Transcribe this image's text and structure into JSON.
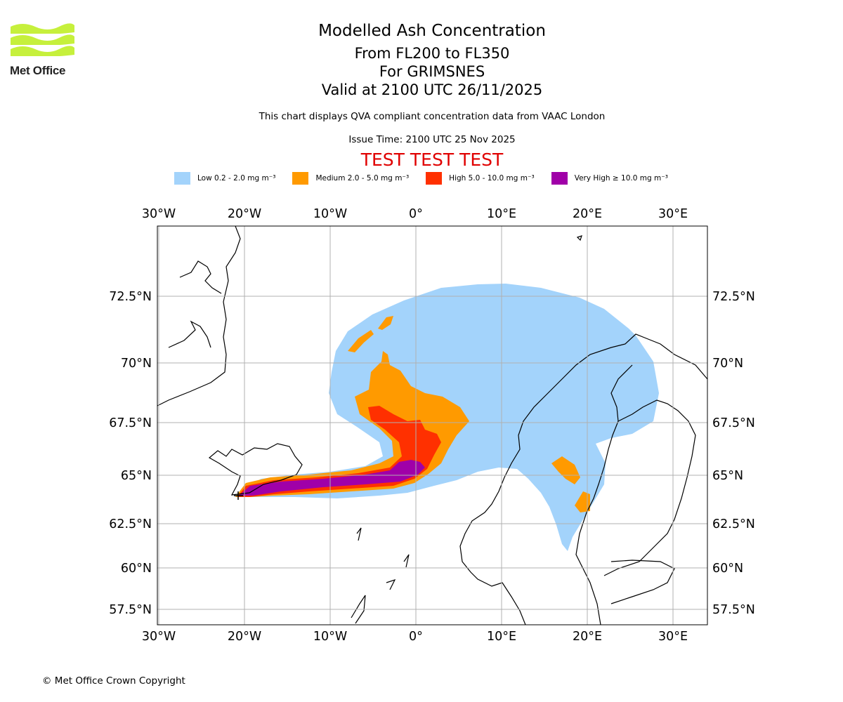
{
  "header": {
    "logo_text": "Met Office",
    "title": "Modelled Ash Concentration",
    "flight_levels": "From FL200 to FL350",
    "volcano": "For GRIMSNES",
    "valid_time": "Valid at 2100 UTC 26/11/2025",
    "subtitle": "This chart displays QVA compliant concentration data from VAAC London",
    "issue_time": "Issue Time: 2100 UTC 25 Nov 2025",
    "test_banner": "TEST TEST TEST"
  },
  "legend": [
    {
      "label": "Low 0.2 - 2.0 mg m⁻³",
      "color": "#a3d3fb"
    },
    {
      "label": "Medium 2.0 - 5.0 mg m⁻³",
      "color": "#ff9a00"
    },
    {
      "label": "High 5.0 - 10.0 mg m⁻³",
      "color": "#ff3000"
    },
    {
      "label": "Very High ≥ 10.0 mg m⁻³",
      "color": "#a000a8"
    }
  ],
  "map": {
    "lon_ticks": [
      "30°W",
      "20°W",
      "10°W",
      "0°",
      "10°E",
      "20°E",
      "30°E"
    ],
    "lat_ticks": [
      "72.5°N",
      "70°N",
      "67.5°N",
      "65°N",
      "62.5°N",
      "60°N",
      "57.5°N"
    ],
    "lon_range": [
      -30,
      34
    ],
    "lat_range": [
      57,
      75
    ]
  },
  "footer": {
    "copyright": "© Met Office Crown Copyright"
  }
}
